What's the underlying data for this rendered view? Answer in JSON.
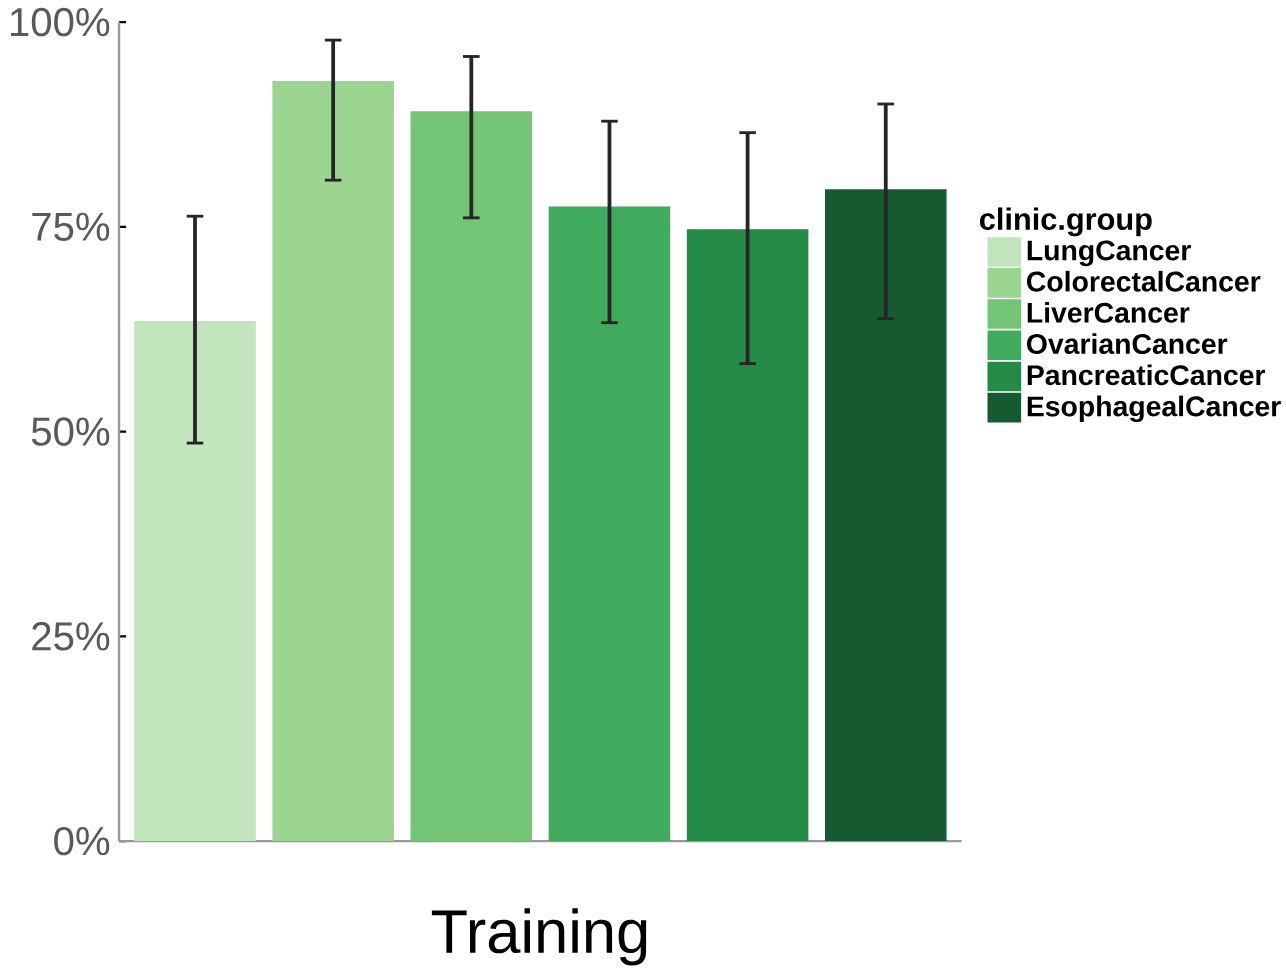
{
  "chart_data": {
    "type": "bar",
    "xlabel": "Training",
    "legend_title": "clinic.group",
    "categories": [
      null,
      null,
      null,
      null,
      null,
      null
    ],
    "series": [
      {
        "name": "LungCancer",
        "color": "#c2e5bd",
        "values": [
          63.5,
          null,
          null,
          null,
          null,
          null
        ],
        "errors": [
          [
            48.6,
            76.3
          ],
          null,
          null,
          null,
          null,
          null
        ]
      },
      {
        "name": "ColorectalCancer",
        "color": "#9bd591",
        "values": [
          null,
          92.8,
          null,
          null,
          null,
          null
        ],
        "errors": [
          null,
          [
            80.7,
            97.8
          ],
          null,
          null,
          null,
          null
        ]
      },
      {
        "name": "LiverCancer",
        "color": "#74c476",
        "values": [
          null,
          null,
          89.1,
          null,
          null,
          null
        ],
        "errors": [
          null,
          null,
          [
            76.1,
            95.8
          ],
          null,
          null,
          null
        ]
      },
      {
        "name": "OvarianCancer",
        "color": "#41ab5d",
        "values": [
          null,
          null,
          null,
          77.5,
          null,
          null
        ],
        "errors": [
          null,
          null,
          null,
          [
            63.3,
            87.9
          ],
          null,
          null
        ]
      },
      {
        "name": "PancreaticCancer",
        "color": "#238b45",
        "values": [
          null,
          null,
          null,
          null,
          74.7,
          null
        ],
        "errors": [
          null,
          null,
          null,
          null,
          [
            58.3,
            86.5
          ],
          null
        ]
      },
      {
        "name": "EsophagealCancer",
        "color": "#155a31",
        "values": [
          null,
          null,
          null,
          null,
          null,
          79.6
        ],
        "errors": [
          null,
          null,
          null,
          null,
          null,
          [
            63.8,
            90.0
          ]
        ]
      }
    ],
    "ylim": [
      0,
      100
    ],
    "yticks": [
      {
        "value": 0,
        "label": "0%"
      },
      {
        "value": 25,
        "label": "25%"
      },
      {
        "value": 50,
        "label": "50%"
      },
      {
        "value": 75,
        "label": "75%"
      },
      {
        "value": 100,
        "label": "100%"
      }
    ],
    "tick_labels": "y",
    "grid": false,
    "legend": "right"
  }
}
